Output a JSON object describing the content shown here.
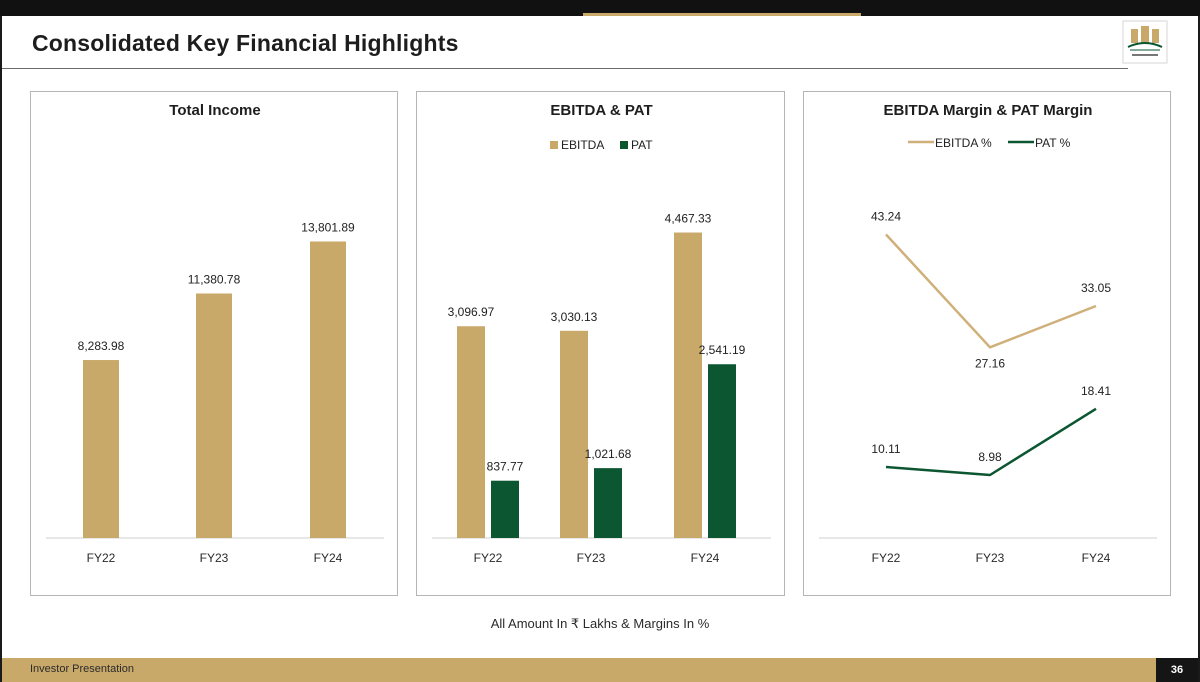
{
  "page": {
    "title": "Consolidated Key Financial Highlights",
    "footnote": "All Amount In ₹ Lakhs & Margins In %",
    "footer_left": "Investor Presentation",
    "page_number": "36"
  },
  "colors": {
    "gold": "#C9A96A",
    "green": "#0C5632",
    "gold_line": "#D0B07A",
    "footer_bar": "#C9A96A"
  },
  "logo": {
    "icon": "company-logo-icon"
  },
  "chart_data": [
    {
      "type": "bar",
      "title": "Total Income",
      "categories": [
        "FY22",
        "FY23",
        "FY24"
      ],
      "series": [
        {
          "name": "Total Income",
          "values": [
            8283.98,
            11380.78,
            13801.89
          ],
          "labels": [
            "8,283.98",
            "11,380.78",
            "13,801.89"
          ],
          "color": "#C9A96A"
        }
      ],
      "ylim": [
        0,
        15500
      ],
      "legend": "none"
    },
    {
      "type": "bar",
      "title": "EBITDA & PAT",
      "categories": [
        "FY22",
        "FY23",
        "FY24"
      ],
      "series": [
        {
          "name": "EBITDA",
          "values": [
            3096.97,
            3030.13,
            4467.33
          ],
          "labels": [
            "3,096.97",
            "3,030.13",
            "4,467.33"
          ],
          "color": "#C9A96A"
        },
        {
          "name": "PAT",
          "values": [
            837.77,
            1021.68,
            2541.19
          ],
          "labels": [
            "837.77",
            "1,021.68",
            "2,541.19"
          ],
          "color": "#0C5632"
        }
      ],
      "ylim": [
        0,
        5060
      ],
      "legend": "top"
    },
    {
      "type": "line",
      "title": "EBITDA Margin & PAT Margin",
      "categories": [
        "FY22",
        "FY23",
        "FY24"
      ],
      "series": [
        {
          "name": "EBITDA %",
          "values": [
            43.24,
            27.16,
            33.05
          ],
          "labels": [
            "43.24",
            "27.16",
            "33.05"
          ],
          "color": "#D0B07A"
        },
        {
          "name": "PAT %",
          "values": [
            10.11,
            8.98,
            18.41
          ],
          "labels": [
            "10.11",
            "8.98",
            "18.41"
          ],
          "color": "#0C5632"
        }
      ],
      "ylim": [
        0,
        50
      ],
      "legend": "top"
    }
  ]
}
